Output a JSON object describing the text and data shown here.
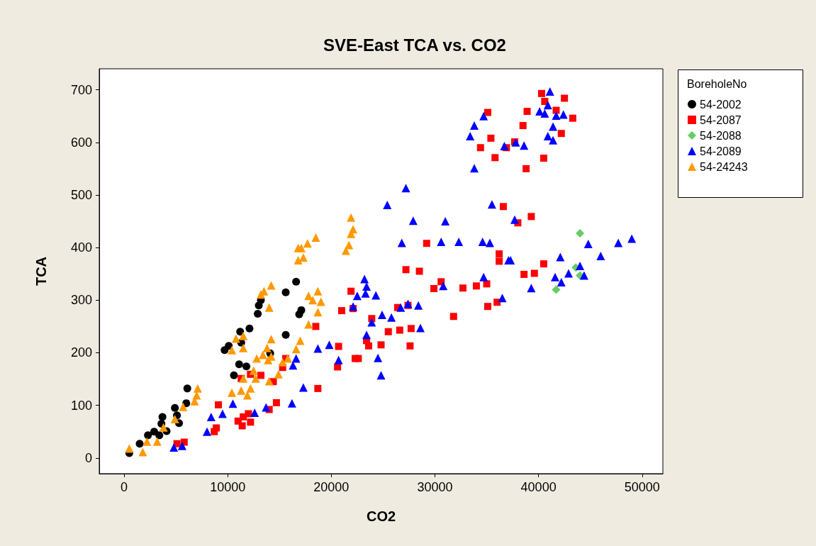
{
  "chart_data": {
    "type": "scatter",
    "title": "SVE-East TCA vs. CO2",
    "xlabel": "CO2",
    "ylabel": "TCA",
    "legend_title": "BoreholeNo",
    "legend": "right",
    "grid": false,
    "xlim": [
      -2400,
      52000
    ],
    "xticks": [
      0,
      10000,
      20000,
      30000,
      40000,
      50000
    ],
    "ylim": [
      -30,
      740
    ],
    "yticks": [
      0,
      100,
      200,
      300,
      400,
      500,
      600,
      700
    ],
    "series": [
      {
        "name": "54-2002",
        "color": "#000000",
        "marker": "circle",
        "x": [
          500,
          1500,
          2300,
          2900,
          3400,
          4100,
          3600,
          3700,
          5100,
          5300,
          4900,
          6000,
          6100,
          9700,
          10100,
          11200,
          12100,
          11300,
          11100,
          11800,
          10600,
          14100,
          15600,
          12900,
          13000,
          13200,
          15600,
          16600,
          16900,
          17100
        ],
        "values": [
          9,
          27,
          43,
          50,
          43,
          51,
          65,
          78,
          81,
          66,
          95,
          104,
          132,
          205,
          213,
          240,
          246,
          219,
          178,
          174,
          157,
          199,
          234,
          274,
          290,
          300,
          315,
          335,
          273,
          281
        ]
      },
      {
        "name": "54-2087",
        "color": "#ff0000",
        "marker": "square",
        "x": [
          5100,
          5800,
          8700,
          8900,
          9100,
          11000,
          11400,
          11500,
          12200,
          12000,
          14000,
          14700,
          18700,
          11300,
          12200,
          13200,
          14400,
          15300,
          15600,
          18500,
          20600,
          20700,
          21000,
          21900,
          22100,
          22300,
          22600,
          23400,
          23600,
          23900,
          24800,
          25500,
          26400,
          26600,
          27400,
          27700,
          27600,
          27200,
          28500,
          29200,
          29900,
          30600,
          31800,
          32700,
          34000,
          35000,
          35100,
          36000,
          36200,
          36200,
          36600,
          38000,
          39300,
          38600,
          39600,
          40500,
          35100,
          34400,
          35400,
          35800,
          36900,
          37700,
          38500,
          38900,
          38800,
          40300,
          40600,
          42500,
          41700,
          43300,
          42200,
          40500
        ],
        "values": [
          27,
          30,
          50,
          57,
          101,
          70,
          61,
          78,
          68,
          84,
          92,
          105,
          132,
          151,
          159,
          157,
          145,
          172,
          189,
          250,
          173,
          212,
          280,
          317,
          284,
          189,
          189,
          223,
          213,
          265,
          215,
          240,
          286,
          243,
          290,
          246,
          213,
          358,
          355,
          408,
          322,
          335,
          269,
          323,
          327,
          331,
          288,
          296,
          388,
          374,
          478,
          447,
          459,
          349,
          351,
          369,
          657,
          590,
          608,
          571,
          590,
          601,
          632,
          659,
          550,
          693,
          678,
          684,
          661,
          646,
          617,
          570
        ]
      },
      {
        "name": "54-2088",
        "color": "#66cc66",
        "marker": "diamond",
        "x": [
          44000,
          43600,
          44000,
          41700
        ],
        "values": [
          427,
          362,
          347,
          320
        ]
      },
      {
        "name": "54-2089",
        "color": "#0000ff",
        "marker": "triangle",
        "x": [
          4800,
          5600,
          8000,
          8400,
          9500,
          10500,
          12600,
          13700,
          16200,
          17300,
          16300,
          16600,
          18700,
          19800,
          20700,
          22100,
          22500,
          23200,
          23400,
          23300,
          24300,
          23400,
          23900,
          24900,
          25800,
          24500,
          24800,
          26700,
          27400,
          28400,
          28600,
          26800,
          27200,
          25400,
          27900,
          31000,
          30600,
          32300,
          34600,
          35300,
          35500,
          34700,
          30800,
          37700,
          37100,
          37300,
          36500,
          39300,
          41600,
          42200,
          42900,
          44000,
          44400,
          42100,
          44800,
          46000,
          47700,
          49000,
          33800,
          34700,
          33800,
          33400,
          36700,
          37800,
          38600,
          40100,
          40600,
          40900,
          41100,
          41700,
          42400,
          41400,
          40900,
          41400
        ],
        "values": [
          20,
          23,
          50,
          78,
          84,
          103,
          86,
          96,
          104,
          134,
          176,
          189,
          208,
          215,
          186,
          288,
          308,
          340,
          326,
          313,
          309,
          234,
          258,
          272,
          267,
          190,
          157,
          286,
          293,
          290,
          247,
          409,
          513,
          481,
          451,
          450,
          411,
          411,
          411,
          409,
          482,
          344,
          327,
          453,
          376,
          376,
          304,
          323,
          344,
          334,
          351,
          365,
          347,
          382,
          407,
          384,
          409,
          417,
          551,
          650,
          632,
          612,
          593,
          600,
          594,
          659,
          655,
          671,
          697,
          651,
          653,
          630,
          612,
          604
        ]
      },
      {
        "name": "54-24243",
        "color": "#ff9900",
        "marker": "triangle",
        "x": [
          500,
          1800,
          2200,
          3200,
          3800,
          4900,
          5700,
          6800,
          7000,
          7100,
          10400,
          11300,
          11900,
          12200,
          11500,
          12700,
          12500,
          14000,
          14900,
          12800,
          13400,
          13900,
          13800,
          14200,
          15300,
          15800,
          14200,
          16600,
          17000,
          10800,
          11500,
          10400,
          11500,
          14000,
          13200,
          13500,
          14200,
          17800,
          18200,
          18700,
          19000,
          18700,
          17800,
          16800,
          17100,
          17700,
          18500,
          16800,
          17300,
          21900,
          22100,
          21900,
          21700,
          21400
        ],
        "values": [
          18,
          11,
          31,
          31,
          58,
          74,
          97,
          108,
          119,
          132,
          124,
          128,
          119,
          132,
          151,
          151,
          166,
          146,
          159,
          189,
          196,
          186,
          209,
          193,
          182,
          189,
          226,
          207,
          223,
          227,
          232,
          205,
          209,
          286,
          311,
          317,
          328,
          308,
          300,
          317,
          297,
          277,
          254,
          399,
          399,
          408,
          419,
          376,
          381,
          457,
          435,
          426,
          405,
          394
        ]
      }
    ]
  }
}
